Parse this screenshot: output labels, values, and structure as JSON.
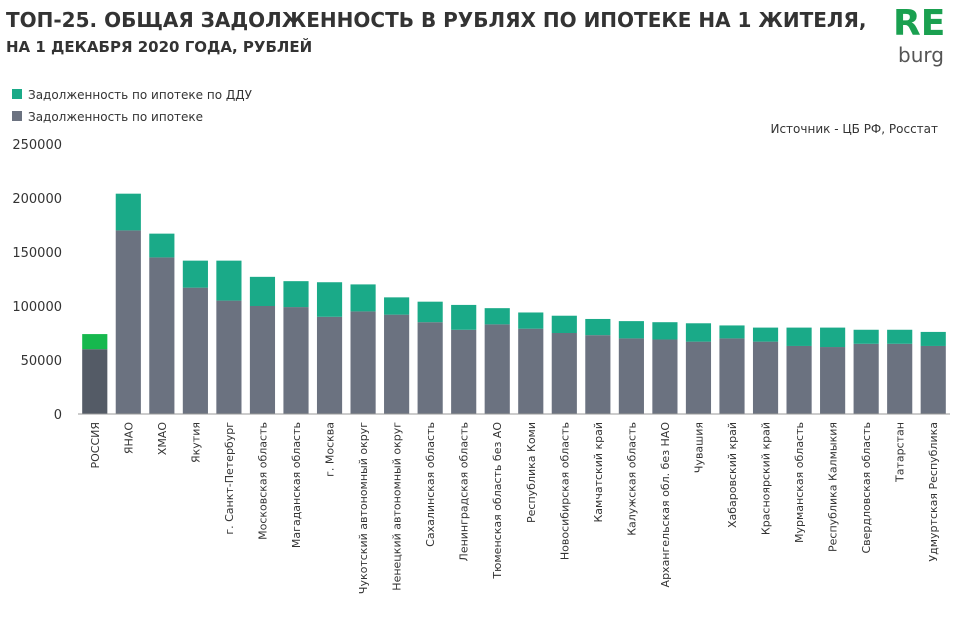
{
  "chart_data": {
    "type": "stacked_bar",
    "title": "ТОП-25. ОБЩАЯ ЗАДОЛЖЕННОСТЬ В РУБЛЯХ ПО ИПОТЕКЕ НА 1 ЖИТЕЛЯ,",
    "subtitle": "НА 1 ДЕКАБРЯ 2020 ГОДА, РУБЛЕЙ",
    "logo": [
      "RE",
      "burg"
    ],
    "source": "Источник - ЦБ РФ, Росстат",
    "categories": [
      "РОССИЯ",
      "ЯНАО",
      "ХМАО",
      "Якутия",
      "г. Санкт-Петербург",
      "Московская область",
      "Магаданская область",
      "г. Москва",
      "Чукотский автономный округ",
      "Ненецкий автономный округ",
      "Сахалинская область",
      "Ленинградская область",
      "Тюменская область без АО",
      "Республика Коми",
      "Новосибирская область",
      "Камчатский край",
      "Калужская область",
      "Архангельская обл. без НАО",
      "Чувашия",
      "Хабаровский край",
      "Красноярский край",
      "Мурманская область",
      "Республика Калмыкия",
      "Свердловская область",
      "Татарстан",
      "Удмуртская Республика"
    ],
    "series": [
      {
        "name": "Задолженность по ипотеке",
        "color": "#6b7280",
        "highlight_color": "#545b66",
        "values": [
          60000,
          170000,
          145000,
          117000,
          105000,
          100000,
          99000,
          90000,
          95000,
          92000,
          85000,
          78000,
          83000,
          79000,
          75000,
          73000,
          70000,
          69000,
          67000,
          70000,
          67000,
          63000,
          62000,
          65000,
          65000,
          63000
        ]
      },
      {
        "name": "Задолженность по ипотеке по ДДУ",
        "color": "#1aaa88",
        "highlight_color": "#16b84e",
        "values": [
          14000,
          34000,
          22000,
          25000,
          37000,
          27000,
          24000,
          32000,
          25000,
          16000,
          19000,
          23000,
          15000,
          15000,
          16000,
          15000,
          16000,
          16000,
          17000,
          12000,
          13000,
          17000,
          18000,
          13000,
          13000,
          13000
        ]
      }
    ],
    "highlight_index": 0,
    "ylim": [
      0,
      250000
    ],
    "yticks": [
      0,
      50000,
      100000,
      150000,
      200000,
      250000
    ]
  }
}
